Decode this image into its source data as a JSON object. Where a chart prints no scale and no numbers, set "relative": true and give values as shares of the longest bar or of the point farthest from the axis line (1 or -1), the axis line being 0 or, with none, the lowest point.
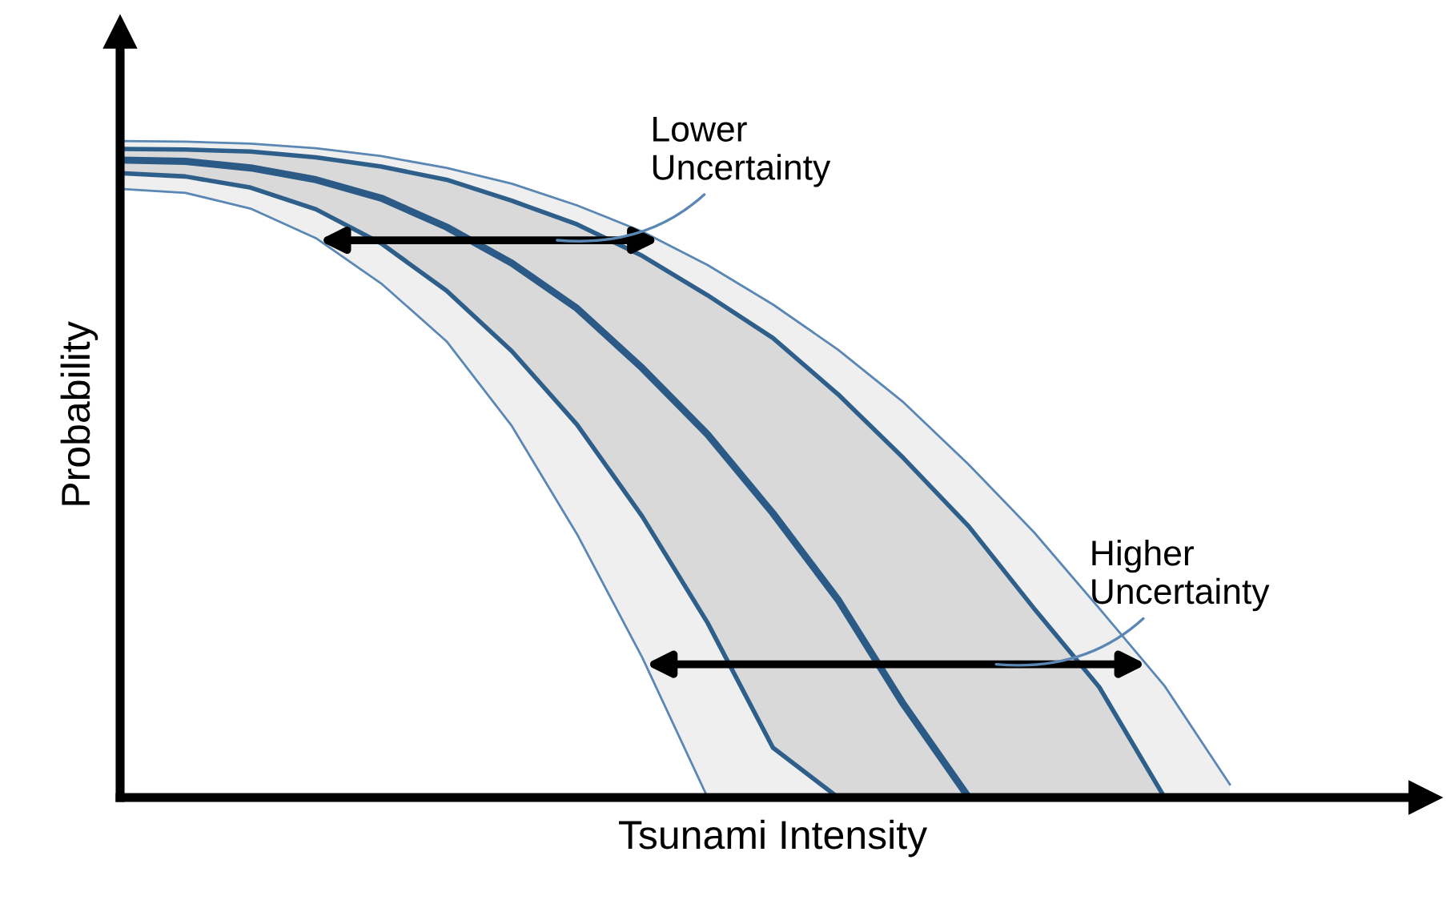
{
  "chart_data": {
    "type": "line",
    "relative": true,
    "xlabel": "Tsunami Intensity",
    "ylabel": "Probability",
    "marker": "none",
    "line_style": "solid",
    "categories": [
      null,
      null,
      null,
      null,
      null,
      null,
      null,
      null,
      null,
      null,
      null,
      null,
      null,
      null,
      null,
      null,
      null,
      null
    ],
    "series": [
      {
        "color": "#5a87b3",
        "values": [
          1.0,
          0.999,
          0.996,
          0.989,
          0.977,
          0.959,
          0.935,
          0.902,
          0.862,
          0.811,
          0.751,
          0.682,
          0.602,
          0.507,
          0.404,
          0.288,
          0.17,
          0.02
        ],
        "lower": [
          0.927,
          0.921,
          0.897,
          0.852,
          0.783,
          0.695,
          0.566,
          0.401,
          0.213,
          0,
          0,
          0,
          0,
          0,
          0,
          0,
          0,
          0
        ],
        "upper": [
          1.0,
          0.999,
          0.996,
          0.989,
          0.977,
          0.959,
          0.935,
          0.902,
          0.862,
          0.811,
          0.751,
          0.682,
          0.602,
          0.507,
          0.404,
          0.288,
          0.17,
          0.02
        ]
      },
      {
        "color": "#2e5f8a",
        "values": [
          0.988,
          0.987,
          0.984,
          0.975,
          0.961,
          0.941,
          0.909,
          0.873,
          0.825,
          0.765,
          0.7,
          0.614,
          0.517,
          0.413,
          0.288,
          0.168,
          0,
          null
        ]
      },
      {
        "color": "#2a5a85",
        "values": [
          0.971,
          0.969,
          0.959,
          0.941,
          0.913,
          0.869,
          0.814,
          0.745,
          0.654,
          0.553,
          0.433,
          0.301,
          0.142,
          0,
          null,
          null,
          null,
          null
        ],
        "lower": [
          0.951,
          0.946,
          0.929,
          0.896,
          0.844,
          0.772,
          0.68,
          0.568,
          0.428,
          0.266,
          0.076,
          0,
          0,
          0,
          0,
          0,
          0,
          null
        ],
        "upper": [
          0.988,
          0.987,
          0.984,
          0.975,
          0.961,
          0.941,
          0.909,
          0.873,
          0.825,
          0.765,
          0.7,
          0.614,
          0.517,
          0.413,
          0.288,
          0.168,
          0,
          null
        ]
      },
      {
        "color": "#2e5f8a",
        "values": [
          0.951,
          0.946,
          0.929,
          0.896,
          0.844,
          0.772,
          0.68,
          0.568,
          0.428,
          0.266,
          0.076,
          0,
          null,
          null,
          null,
          null,
          null,
          null
        ]
      },
      {
        "color": "#5a87b3",
        "values": [
          0.927,
          0.921,
          0.897,
          0.852,
          0.783,
          0.695,
          0.566,
          0.401,
          0.213,
          0,
          null,
          null,
          null,
          null,
          null,
          null,
          null,
          null
        ]
      }
    ],
    "annotations": [
      "Lower\nUncertainty",
      "Higher\nUncertainty"
    ]
  }
}
